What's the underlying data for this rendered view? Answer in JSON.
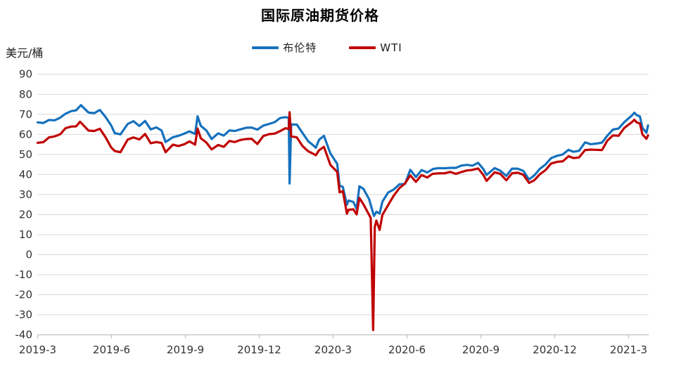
{
  "chart_data": {
    "type": "line",
    "title": "国际原油期货价格",
    "y_axis_title": "美元/桶",
    "ylim": [
      -40,
      90
    ],
    "y_ticks": [
      90,
      80,
      70,
      60,
      50,
      40,
      30,
      20,
      10,
      0,
      -10,
      -20,
      -30,
      -40
    ],
    "x_ticks": [
      "2019-3",
      "2019-6",
      "2019-9",
      "2019-12",
      "2020-3",
      "2020-6",
      "2020-9",
      "2020-12",
      "2021-3"
    ],
    "grid": true,
    "legend_position": "top-center",
    "colors": {
      "grid": "#d9d9d9",
      "axis": "#bfbfbf",
      "tick_text": "#333333"
    },
    "series": [
      {
        "name": "布伦特",
        "color": "#1571bd",
        "points": [
          [
            "2019-03-01",
            66.0
          ],
          [
            "2019-03-08",
            65.7
          ],
          [
            "2019-03-15",
            67.2
          ],
          [
            "2019-03-22",
            67.0
          ],
          [
            "2019-03-29",
            68.4
          ],
          [
            "2019-04-05",
            70.3
          ],
          [
            "2019-04-12",
            71.6
          ],
          [
            "2019-04-18",
            72.0
          ],
          [
            "2019-04-24",
            74.6
          ],
          [
            "2019-05-03",
            70.9
          ],
          [
            "2019-05-10",
            70.6
          ],
          [
            "2019-05-17",
            72.2
          ],
          [
            "2019-05-24",
            68.7
          ],
          [
            "2019-05-31",
            64.5
          ],
          [
            "2019-06-05",
            60.6
          ],
          [
            "2019-06-12",
            60.0
          ],
          [
            "2019-06-21",
            65.2
          ],
          [
            "2019-06-28",
            66.6
          ],
          [
            "2019-07-05",
            64.2
          ],
          [
            "2019-07-12",
            66.7
          ],
          [
            "2019-07-19",
            62.5
          ],
          [
            "2019-07-26",
            63.5
          ],
          [
            "2019-08-02",
            61.9
          ],
          [
            "2019-08-07",
            56.2
          ],
          [
            "2019-08-16",
            58.6
          ],
          [
            "2019-08-23",
            59.3
          ],
          [
            "2019-08-30",
            60.4
          ],
          [
            "2019-09-06",
            61.5
          ],
          [
            "2019-09-13",
            60.2
          ],
          [
            "2019-09-16",
            69.0
          ],
          [
            "2019-09-20",
            64.3
          ],
          [
            "2019-09-27",
            61.9
          ],
          [
            "2019-10-03",
            57.7
          ],
          [
            "2019-10-11",
            60.5
          ],
          [
            "2019-10-18",
            59.4
          ],
          [
            "2019-10-25",
            62.0
          ],
          [
            "2019-11-01",
            61.7
          ],
          [
            "2019-11-08",
            62.5
          ],
          [
            "2019-11-15",
            63.3
          ],
          [
            "2019-11-22",
            63.4
          ],
          [
            "2019-11-29",
            62.4
          ],
          [
            "2019-12-06",
            64.4
          ],
          [
            "2019-12-13",
            65.2
          ],
          [
            "2019-12-20",
            66.1
          ],
          [
            "2019-12-27",
            68.2
          ],
          [
            "2020-01-03",
            68.6
          ],
          [
            "2020-01-07",
            68.3
          ],
          [
            "2020-01-08",
            35.5
          ],
          [
            "2020-01-10",
            65.0
          ],
          [
            "2020-01-17",
            64.9
          ],
          [
            "2020-01-24",
            60.7
          ],
          [
            "2020-01-31",
            56.6
          ],
          [
            "2020-02-07",
            54.5
          ],
          [
            "2020-02-10",
            53.3
          ],
          [
            "2020-02-14",
            57.3
          ],
          [
            "2020-02-20",
            59.3
          ],
          [
            "2020-02-28",
            50.5
          ],
          [
            "2020-03-06",
            45.3
          ],
          [
            "2020-03-09",
            34.4
          ],
          [
            "2020-03-13",
            33.8
          ],
          [
            "2020-03-18",
            24.9
          ],
          [
            "2020-03-20",
            27.0
          ],
          [
            "2020-03-26",
            26.3
          ],
          [
            "2020-03-30",
            22.8
          ],
          [
            "2020-04-03",
            34.1
          ],
          [
            "2020-04-08",
            32.8
          ],
          [
            "2020-04-15",
            27.7
          ],
          [
            "2020-04-21",
            19.3
          ],
          [
            "2020-04-24",
            21.4
          ],
          [
            "2020-04-28",
            20.5
          ],
          [
            "2020-05-01",
            26.4
          ],
          [
            "2020-05-08",
            31.0
          ],
          [
            "2020-05-15",
            32.5
          ],
          [
            "2020-05-22",
            35.1
          ],
          [
            "2020-05-29",
            35.3
          ],
          [
            "2020-06-05",
            42.3
          ],
          [
            "2020-06-12",
            38.7
          ],
          [
            "2020-06-19",
            42.2
          ],
          [
            "2020-06-26",
            41.0
          ],
          [
            "2020-07-03",
            42.8
          ],
          [
            "2020-07-10",
            43.2
          ],
          [
            "2020-07-17",
            43.1
          ],
          [
            "2020-07-24",
            43.3
          ],
          [
            "2020-07-31",
            43.3
          ],
          [
            "2020-08-07",
            44.4
          ],
          [
            "2020-08-14",
            44.8
          ],
          [
            "2020-08-21",
            44.4
          ],
          [
            "2020-08-28",
            45.8
          ],
          [
            "2020-09-04",
            42.7
          ],
          [
            "2020-09-08",
            39.8
          ],
          [
            "2020-09-18",
            43.2
          ],
          [
            "2020-09-25",
            41.9
          ],
          [
            "2020-10-02",
            39.3
          ],
          [
            "2020-10-09",
            42.9
          ],
          [
            "2020-10-16",
            42.9
          ],
          [
            "2020-10-23",
            41.8
          ],
          [
            "2020-10-30",
            37.5
          ],
          [
            "2020-11-06",
            39.5
          ],
          [
            "2020-11-13",
            42.8
          ],
          [
            "2020-11-20",
            45.0
          ],
          [
            "2020-11-27",
            48.2
          ],
          [
            "2020-12-04",
            49.3
          ],
          [
            "2020-12-11",
            50.0
          ],
          [
            "2020-12-18",
            52.3
          ],
          [
            "2020-12-24",
            51.3
          ],
          [
            "2020-12-31",
            51.8
          ],
          [
            "2021-01-08",
            56.0
          ],
          [
            "2021-01-15",
            55.1
          ],
          [
            "2021-01-22",
            55.4
          ],
          [
            "2021-01-29",
            55.9
          ],
          [
            "2021-02-05",
            59.3
          ],
          [
            "2021-02-12",
            62.4
          ],
          [
            "2021-02-19",
            62.9
          ],
          [
            "2021-02-26",
            66.1
          ],
          [
            "2021-03-05",
            69.4
          ],
          [
            "2021-03-08",
            70.8
          ],
          [
            "2021-03-11",
            69.6
          ],
          [
            "2021-03-15",
            68.9
          ],
          [
            "2021-03-18",
            63.3
          ],
          [
            "2021-03-23",
            60.8
          ],
          [
            "2021-03-25",
            64.5
          ]
        ]
      },
      {
        "name": "WTI",
        "color": "#c00000",
        "points": [
          [
            "2019-03-01",
            55.8
          ],
          [
            "2019-03-08",
            56.1
          ],
          [
            "2019-03-15",
            58.5
          ],
          [
            "2019-03-22",
            59.0
          ],
          [
            "2019-03-29",
            60.1
          ],
          [
            "2019-04-05",
            63.1
          ],
          [
            "2019-04-12",
            63.9
          ],
          [
            "2019-04-18",
            64.0
          ],
          [
            "2019-04-23",
            66.3
          ],
          [
            "2019-05-03",
            61.9
          ],
          [
            "2019-05-10",
            61.7
          ],
          [
            "2019-05-17",
            62.8
          ],
          [
            "2019-05-24",
            58.6
          ],
          [
            "2019-05-31",
            53.5
          ],
          [
            "2019-06-05",
            51.7
          ],
          [
            "2019-06-12",
            51.1
          ],
          [
            "2019-06-21",
            57.4
          ],
          [
            "2019-06-28",
            58.5
          ],
          [
            "2019-07-05",
            57.5
          ],
          [
            "2019-07-12",
            60.2
          ],
          [
            "2019-07-19",
            55.6
          ],
          [
            "2019-07-26",
            56.2
          ],
          [
            "2019-08-02",
            55.7
          ],
          [
            "2019-08-07",
            51.1
          ],
          [
            "2019-08-16",
            54.9
          ],
          [
            "2019-08-23",
            54.2
          ],
          [
            "2019-08-30",
            55.1
          ],
          [
            "2019-09-06",
            56.5
          ],
          [
            "2019-09-13",
            54.9
          ],
          [
            "2019-09-16",
            62.9
          ],
          [
            "2019-09-20",
            58.1
          ],
          [
            "2019-09-27",
            55.9
          ],
          [
            "2019-10-03",
            52.5
          ],
          [
            "2019-10-11",
            54.7
          ],
          [
            "2019-10-18",
            53.8
          ],
          [
            "2019-10-25",
            56.7
          ],
          [
            "2019-11-01",
            56.2
          ],
          [
            "2019-11-08",
            57.2
          ],
          [
            "2019-11-15",
            57.7
          ],
          [
            "2019-11-22",
            57.8
          ],
          [
            "2019-11-29",
            55.2
          ],
          [
            "2019-12-06",
            59.2
          ],
          [
            "2019-12-13",
            60.1
          ],
          [
            "2019-12-20",
            60.4
          ],
          [
            "2019-12-27",
            61.7
          ],
          [
            "2020-01-03",
            63.1
          ],
          [
            "2020-01-07",
            62.7
          ],
          [
            "2020-01-08",
            71.0
          ],
          [
            "2020-01-10",
            59.0
          ],
          [
            "2020-01-17",
            58.5
          ],
          [
            "2020-01-24",
            54.2
          ],
          [
            "2020-01-31",
            51.6
          ],
          [
            "2020-02-07",
            50.3
          ],
          [
            "2020-02-10",
            49.6
          ],
          [
            "2020-02-14",
            52.1
          ],
          [
            "2020-02-20",
            53.8
          ],
          [
            "2020-02-28",
            44.8
          ],
          [
            "2020-03-06",
            41.3
          ],
          [
            "2020-03-09",
            31.1
          ],
          [
            "2020-03-13",
            31.7
          ],
          [
            "2020-03-18",
            20.4
          ],
          [
            "2020-03-20",
            22.4
          ],
          [
            "2020-03-26",
            22.6
          ],
          [
            "2020-03-30",
            20.1
          ],
          [
            "2020-04-03",
            28.3
          ],
          [
            "2020-04-08",
            25.1
          ],
          [
            "2020-04-15",
            19.9
          ],
          [
            "2020-04-17",
            18.3
          ],
          [
            "2020-04-20",
            -37.6
          ],
          [
            "2020-04-22",
            13.8
          ],
          [
            "2020-04-24",
            17.0
          ],
          [
            "2020-04-28",
            12.3
          ],
          [
            "2020-05-01",
            19.8
          ],
          [
            "2020-05-08",
            24.7
          ],
          [
            "2020-05-15",
            29.4
          ],
          [
            "2020-05-22",
            33.2
          ],
          [
            "2020-05-29",
            35.5
          ],
          [
            "2020-06-05",
            39.6
          ],
          [
            "2020-06-12",
            36.3
          ],
          [
            "2020-06-19",
            39.7
          ],
          [
            "2020-06-26",
            38.5
          ],
          [
            "2020-07-02",
            40.3
          ],
          [
            "2020-07-10",
            40.6
          ],
          [
            "2020-07-17",
            40.6
          ],
          [
            "2020-07-24",
            41.3
          ],
          [
            "2020-07-31",
            40.3
          ],
          [
            "2020-08-07",
            41.2
          ],
          [
            "2020-08-14",
            42.0
          ],
          [
            "2020-08-21",
            42.3
          ],
          [
            "2020-08-28",
            43.0
          ],
          [
            "2020-09-04",
            39.8
          ],
          [
            "2020-09-08",
            36.8
          ],
          [
            "2020-09-18",
            41.1
          ],
          [
            "2020-09-25",
            40.3
          ],
          [
            "2020-10-02",
            37.1
          ],
          [
            "2020-10-09",
            40.6
          ],
          [
            "2020-10-16",
            40.9
          ],
          [
            "2020-10-23",
            39.9
          ],
          [
            "2020-10-30",
            35.8
          ],
          [
            "2020-11-06",
            37.1
          ],
          [
            "2020-11-13",
            40.1
          ],
          [
            "2020-11-20",
            42.2
          ],
          [
            "2020-11-27",
            45.5
          ],
          [
            "2020-12-04",
            46.3
          ],
          [
            "2020-12-11",
            46.6
          ],
          [
            "2020-12-18",
            49.1
          ],
          [
            "2020-12-24",
            48.2
          ],
          [
            "2020-12-31",
            48.5
          ],
          [
            "2021-01-08",
            52.2
          ],
          [
            "2021-01-15",
            52.4
          ],
          [
            "2021-01-22",
            52.3
          ],
          [
            "2021-01-29",
            52.2
          ],
          [
            "2021-02-05",
            56.8
          ],
          [
            "2021-02-12",
            59.5
          ],
          [
            "2021-02-19",
            59.3
          ],
          [
            "2021-02-26",
            63.2
          ],
          [
            "2021-03-05",
            66.1
          ],
          [
            "2021-03-08",
            67.3
          ],
          [
            "2021-03-11",
            66.0
          ],
          [
            "2021-03-15",
            65.4
          ],
          [
            "2021-03-18",
            60.0
          ],
          [
            "2021-03-23",
            57.8
          ],
          [
            "2021-03-25",
            59.5
          ]
        ]
      }
    ]
  }
}
